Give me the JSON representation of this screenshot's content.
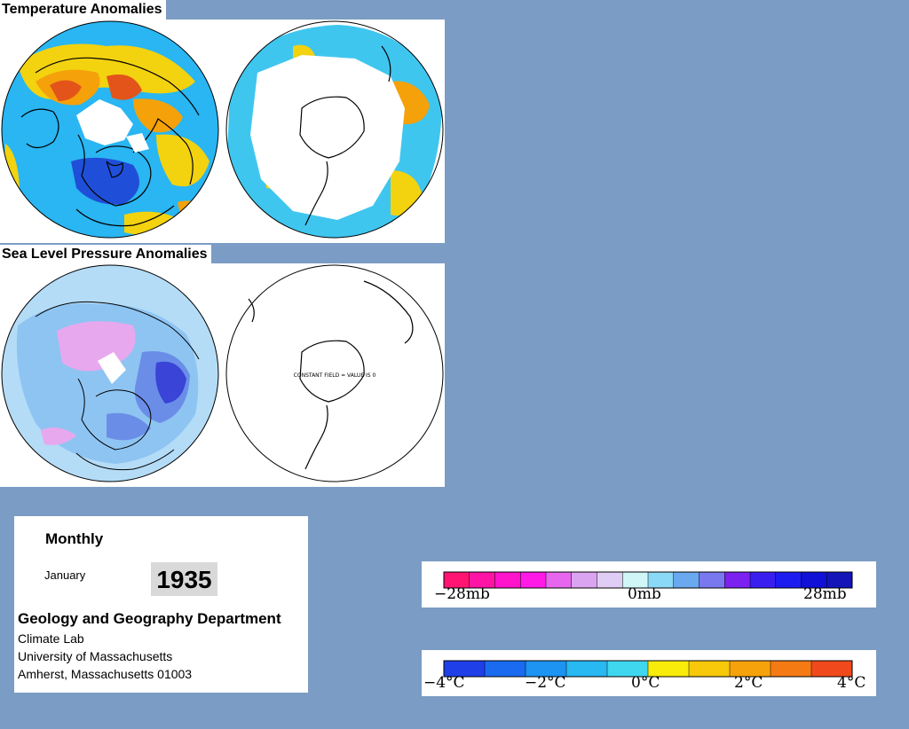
{
  "sections": {
    "temperature": {
      "title": "Temperature Anomalies"
    },
    "pressure": {
      "title": "Sea Level Pressure Anomalies"
    }
  },
  "maps": {
    "temperature_north": {
      "palette": [
        "#1f4fd8",
        "#29b6f2",
        "#5ad4f5",
        "#f3d20f",
        "#f5a10a",
        "#e3541a"
      ]
    },
    "temperature_south": {
      "palette": [
        "#3fc6ef",
        "#f3d20f",
        "#f5a10a"
      ]
    },
    "pressure_north": {
      "palette": [
        "#b4dcf7",
        "#8ec4f2",
        "#6a8ee8",
        "#3a44d6",
        "#e8a8ee"
      ]
    },
    "pressure_south": {
      "annotation": "CONSTANT FIELD = VALUE IS 0"
    }
  },
  "info": {
    "period": "Monthly",
    "month": "January",
    "year": "1935",
    "department": "Geology and Geography Department",
    "lab": "Climate Lab",
    "university": "University of Massachusetts",
    "address": "Amherst, Massachusetts 01003"
  },
  "pressure_legend": {
    "colors": [
      "#ff1473",
      "#ff14a6",
      "#ff14cc",
      "#ff1ae6",
      "#e667ee",
      "#dba4f0",
      "#e0cdf5",
      "#d0f6f8",
      "#8ad9f7",
      "#6aa8ef",
      "#7a78ef",
      "#7b22f0",
      "#3a1ef0",
      "#1c1cf0",
      "#1010d6",
      "#1414b8"
    ],
    "labels": [
      "−28mb",
      "0mb",
      "28mb"
    ]
  },
  "temperature_legend": {
    "colors": [
      "#1f3fe8",
      "#1a6bf0",
      "#1d93f2",
      "#28b8f2",
      "#3fd6f0",
      "#f7ec0a",
      "#f7c90a",
      "#f6a20a",
      "#f57a14",
      "#f04a1c"
    ],
    "labels": [
      "−4°C",
      "−2°C",
      "0°C",
      "2°C",
      "4°C"
    ]
  }
}
